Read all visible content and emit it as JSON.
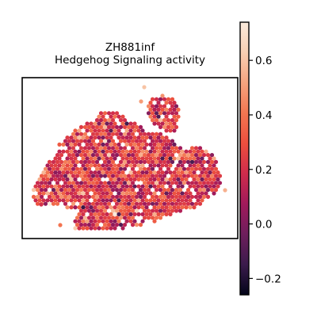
{
  "chart_data": {
    "type": "scatter",
    "title": "ZH881inf",
    "subtitle": "Hedgehog Signaling activity",
    "xlabel": "",
    "ylabel": "",
    "grid": false,
    "colorbar": {
      "colormap": "rocket",
      "range": [
        -0.26,
        0.74
      ],
      "ticks": [
        -0.2,
        0.0,
        0.2,
        0.4,
        0.6
      ],
      "tick_labels": [
        "−0.2",
        "0.0",
        "0.2",
        "0.4",
        "0.6"
      ],
      "colors": [
        "#03051a",
        "#3b1b4c",
        "#6e1e5c",
        "#a11a5b",
        "#d02c4c",
        "#ec4f3e",
        "#f37651",
        "#f6a47f",
        "#f8cfb3",
        "#faebdd"
      ]
    },
    "value_distribution": {
      "mean": 0.22,
      "spread": 0.13,
      "min": -0.26,
      "max": 0.74
    }
  }
}
